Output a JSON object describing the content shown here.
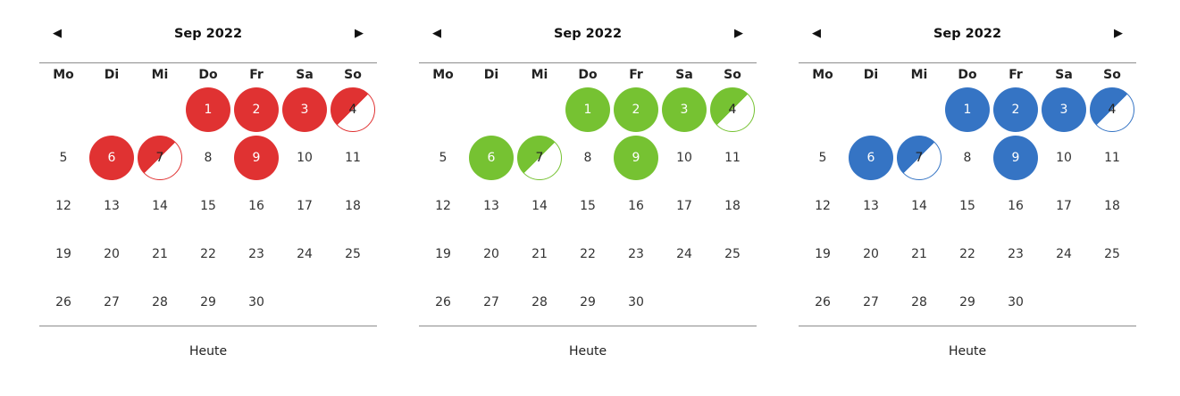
{
  "calendars": [
    {
      "accent": "#e03232",
      "month_label": "Sep 2022",
      "prev_label": "◀",
      "next_label": "▶",
      "weekdays": [
        "Mo",
        "Di",
        "Mi",
        "Do",
        "Fr",
        "Sa",
        "So"
      ],
      "first_weekday_offset": 3,
      "days": [
        "1",
        "2",
        "3",
        "4",
        "5",
        "6",
        "7",
        "8",
        "9",
        "10",
        "11",
        "12",
        "13",
        "14",
        "15",
        "16",
        "17",
        "18",
        "19",
        "20",
        "21",
        "22",
        "23",
        "24",
        "25",
        "26",
        "27",
        "28",
        "29",
        "30"
      ],
      "full_days": [
        1,
        2,
        3,
        6,
        9
      ],
      "half_days": [
        4,
        7
      ],
      "today_label": "Heute"
    },
    {
      "accent": "#76c232",
      "month_label": "Sep 2022",
      "prev_label": "◀",
      "next_label": "▶",
      "weekdays": [
        "Mo",
        "Di",
        "Mi",
        "Do",
        "Fr",
        "Sa",
        "So"
      ],
      "first_weekday_offset": 3,
      "days": [
        "1",
        "2",
        "3",
        "4",
        "5",
        "6",
        "7",
        "8",
        "9",
        "10",
        "11",
        "12",
        "13",
        "14",
        "15",
        "16",
        "17",
        "18",
        "19",
        "20",
        "21",
        "22",
        "23",
        "24",
        "25",
        "26",
        "27",
        "28",
        "29",
        "30"
      ],
      "full_days": [
        1,
        2,
        3,
        6,
        9
      ],
      "half_days": [
        4,
        7
      ],
      "today_label": "Heute"
    },
    {
      "accent": "#3574c4",
      "month_label": "Sep 2022",
      "prev_label": "◀",
      "next_label": "▶",
      "weekdays": [
        "Mo",
        "Di",
        "Mi",
        "Do",
        "Fr",
        "Sa",
        "So"
      ],
      "first_weekday_offset": 3,
      "days": [
        "1",
        "2",
        "3",
        "4",
        "5",
        "6",
        "7",
        "8",
        "9",
        "10",
        "11",
        "12",
        "13",
        "14",
        "15",
        "16",
        "17",
        "18",
        "19",
        "20",
        "21",
        "22",
        "23",
        "24",
        "25",
        "26",
        "27",
        "28",
        "29",
        "30"
      ],
      "full_days": [
        1,
        2,
        3,
        6,
        9
      ],
      "half_days": [
        4,
        7
      ],
      "today_label": "Heute"
    }
  ]
}
